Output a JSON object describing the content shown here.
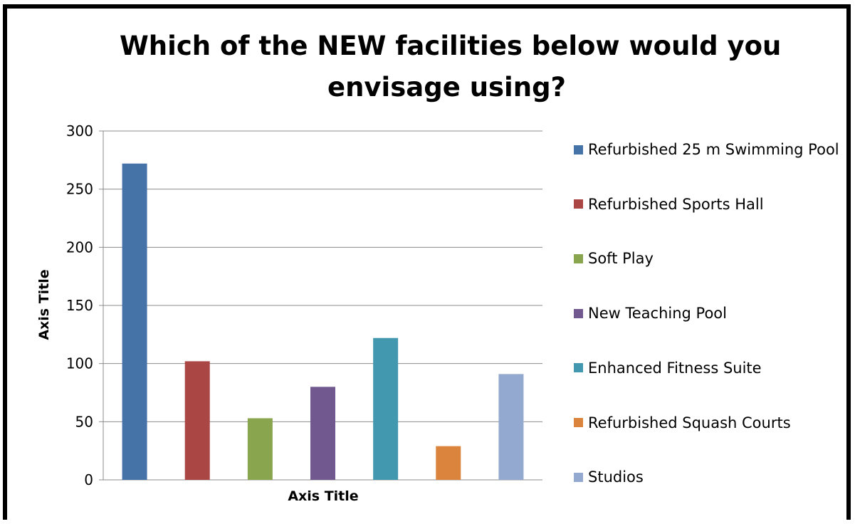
{
  "chart_data": {
    "type": "bar",
    "title_lines": [
      "Which of the NEW facilities below would you",
      "envisage using?"
    ],
    "xlabel": "Axis Title",
    "ylabel": "Axis Title",
    "ylim": [
      0,
      300
    ],
    "yticks": [
      0,
      50,
      100,
      150,
      200,
      250,
      300
    ],
    "grid": true,
    "legend_position": "right",
    "series": [
      {
        "name": "Refurbished 25 m Swimming Pool",
        "value": 272,
        "color": "#4572A7"
      },
      {
        "name": "Refurbished Sports Hall",
        "value": 102,
        "color": "#AA4643"
      },
      {
        "name": "Soft Play",
        "value": 53,
        "color": "#89A54E"
      },
      {
        "name": "New Teaching Pool",
        "value": 80,
        "color": "#71588F"
      },
      {
        "name": "Enhanced Fitness Suite",
        "value": 122,
        "color": "#4198AF"
      },
      {
        "name": "Refurbished Squash Courts",
        "value": 29,
        "color": "#DB843D"
      },
      {
        "name": "Studios",
        "value": 91,
        "color": "#93A9CF"
      }
    ]
  }
}
